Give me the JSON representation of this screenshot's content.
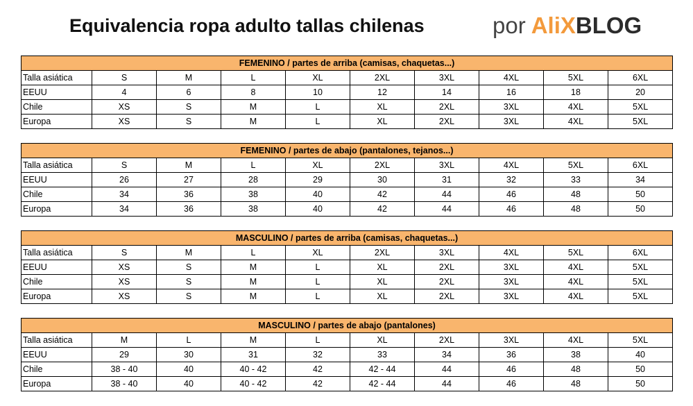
{
  "header": {
    "title": "Equivalencia ropa adulto tallas chilenas",
    "by": "por",
    "brand_a": "AliX",
    "brand_b": "BLOG"
  },
  "tables": [
    {
      "title": "FEMENINO / partes de arriba (camisas, chaquetas...)",
      "rows": [
        [
          "Talla asiática",
          "S",
          "M",
          "L",
          "XL",
          "2XL",
          "3XL",
          "4XL",
          "5XL",
          "6XL"
        ],
        [
          "EEUU",
          "4",
          "6",
          "8",
          "10",
          "12",
          "14",
          "16",
          "18",
          "20"
        ],
        [
          "Chile",
          "XS",
          "S",
          "M",
          "L",
          "XL",
          "2XL",
          "3XL",
          "4XL",
          "5XL"
        ],
        [
          "Europa",
          "XS",
          "S",
          "M",
          "L",
          "XL",
          "2XL",
          "3XL",
          "4XL",
          "5XL"
        ]
      ]
    },
    {
      "title": "FEMENINO / partes de abajo (pantalones, tejanos...)",
      "rows": [
        [
          "Talla asiática",
          "S",
          "M",
          "L",
          "XL",
          "2XL",
          "3XL",
          "4XL",
          "5XL",
          "6XL"
        ],
        [
          "EEUU",
          "26",
          "27",
          "28",
          "29",
          "30",
          "31",
          "32",
          "33",
          "34"
        ],
        [
          "Chile",
          "34",
          "36",
          "38",
          "40",
          "42",
          "44",
          "46",
          "48",
          "50"
        ],
        [
          "Europa",
          "34",
          "36",
          "38",
          "40",
          "42",
          "44",
          "46",
          "48",
          "50"
        ]
      ]
    },
    {
      "title": "MASCULINO / partes de arriba (camisas, chaquetas...)",
      "rows": [
        [
          "Talla asiática",
          "S",
          "M",
          "L",
          "XL",
          "2XL",
          "3XL",
          "4XL",
          "5XL",
          "6XL"
        ],
        [
          "EEUU",
          "XS",
          "S",
          "M",
          "L",
          "XL",
          "2XL",
          "3XL",
          "4XL",
          "5XL"
        ],
        [
          "Chile",
          "XS",
          "S",
          "M",
          "L",
          "XL",
          "2XL",
          "3XL",
          "4XL",
          "5XL"
        ],
        [
          "Europa",
          "XS",
          "S",
          "M",
          "L",
          "XL",
          "2XL",
          "3XL",
          "4XL",
          "5XL"
        ]
      ]
    },
    {
      "title": "MASCULINO / partes de abajo (pantalones)",
      "rows": [
        [
          "Talla asiática",
          "M",
          "L",
          "M",
          "L",
          "XL",
          "2XL",
          "3XL",
          "4XL",
          "5XL"
        ],
        [
          "EEUU",
          "29",
          "30",
          "31",
          "32",
          "33",
          "34",
          "36",
          "38",
          "40"
        ],
        [
          "Chile",
          "38 - 40",
          "40",
          "40 - 42",
          "42",
          "42 - 44",
          "44",
          "46",
          "48",
          "50"
        ],
        [
          "Europa",
          "38 - 40",
          "40",
          "40 - 42",
          "42",
          "42 - 44",
          "44",
          "46",
          "48",
          "50"
        ]
      ]
    }
  ]
}
